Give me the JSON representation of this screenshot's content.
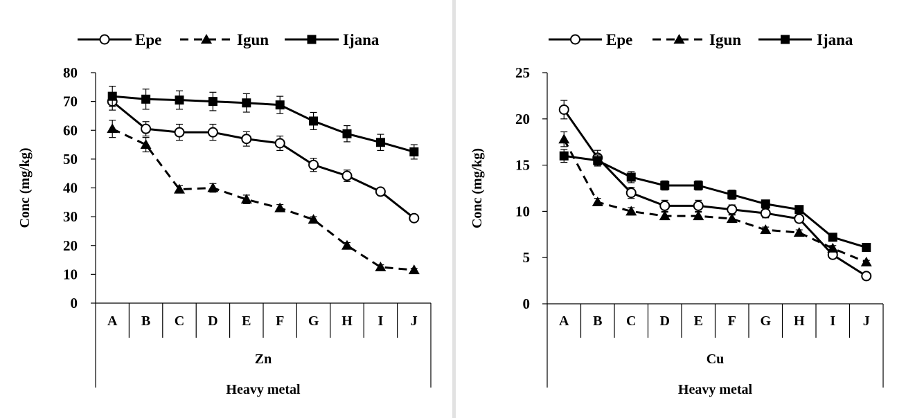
{
  "chart_data": [
    {
      "type": "line",
      "categories": [
        "A",
        "B",
        "C",
        "D",
        "E",
        "F",
        "G",
        "H",
        "I",
        "J"
      ],
      "group_label": "Zn",
      "xlabel": "Heavy  metal",
      "ylabel": "Conc  (mg/kg)",
      "ylim": [
        0,
        80
      ],
      "yticks": [
        0,
        10,
        20,
        30,
        40,
        50,
        60,
        70,
        80
      ],
      "legend_position": "top",
      "error_bars": true,
      "series": [
        {
          "name": "Epe",
          "marker": "open-circle",
          "dash": "solid",
          "color": "#000000",
          "values": [
            70,
            60.5,
            59.3,
            59.3,
            57,
            55.5,
            48,
            44.2,
            38.7,
            29.5
          ],
          "errors": [
            3,
            2.5,
            2.8,
            2.8,
            2.5,
            2.5,
            2.3,
            2,
            1.2,
            1
          ]
        },
        {
          "name": "Igun",
          "marker": "filled-triangle",
          "dash": "dashed",
          "color": "#000000",
          "values": [
            60.5,
            55,
            39.5,
            40,
            36,
            33,
            29,
            20,
            12.5,
            11.5
          ],
          "errors": [
            3,
            2.5,
            1.3,
            1.5,
            1.5,
            1.2,
            1,
            1,
            0.8,
            0.6
          ]
        },
        {
          "name": "Ijana",
          "marker": "filled-square",
          "dash": "solid",
          "color": "#000000",
          "values": [
            71.8,
            70.8,
            70.5,
            70,
            69.5,
            68.8,
            63.2,
            58.8,
            55.8,
            52.5
          ],
          "errors": [
            3.5,
            3.5,
            3.2,
            3.2,
            3.2,
            3,
            3,
            2.8,
            2.8,
            2.5
          ]
        }
      ]
    },
    {
      "type": "line",
      "categories": [
        "A",
        "B",
        "C",
        "D",
        "E",
        "F",
        "G",
        "H",
        "I",
        "J"
      ],
      "group_label": "Cu",
      "xlabel": "Heavy  metal",
      "ylabel": "Conc  (mg/kg)",
      "ylim": [
        0,
        25
      ],
      "yticks": [
        0,
        5,
        10,
        15,
        20,
        25
      ],
      "legend_position": "top",
      "error_bars": true,
      "series": [
        {
          "name": "Epe",
          "marker": "open-circle",
          "dash": "solid",
          "color": "#000000",
          "values": [
            21,
            15.8,
            12,
            10.6,
            10.6,
            10.2,
            9.8,
            9.2,
            5.3,
            3
          ],
          "errors": [
            1,
            0.8,
            0.6,
            0.6,
            0.6,
            0.5,
            0.5,
            0.4,
            0.3,
            0.2
          ]
        },
        {
          "name": "Igun",
          "marker": "filled-triangle",
          "dash": "dashed",
          "color": "#000000",
          "values": [
            17.8,
            11,
            10,
            9.5,
            9.5,
            9.2,
            8,
            7.7,
            6,
            4.5
          ],
          "errors": [
            0.8,
            0.4,
            0.4,
            0.4,
            0.4,
            0.4,
            0.3,
            0.3,
            0.3,
            0.2
          ]
        },
        {
          "name": "Ijana",
          "marker": "filled-square",
          "dash": "solid",
          "color": "#000000",
          "values": [
            16,
            15.5,
            13.7,
            12.8,
            12.8,
            11.8,
            10.8,
            10.2,
            7.2,
            6.1
          ],
          "errors": [
            0.7,
            0.6,
            0.6,
            0.5,
            0.5,
            0.5,
            0.4,
            0.4,
            0.3,
            0.2
          ]
        }
      ]
    }
  ]
}
